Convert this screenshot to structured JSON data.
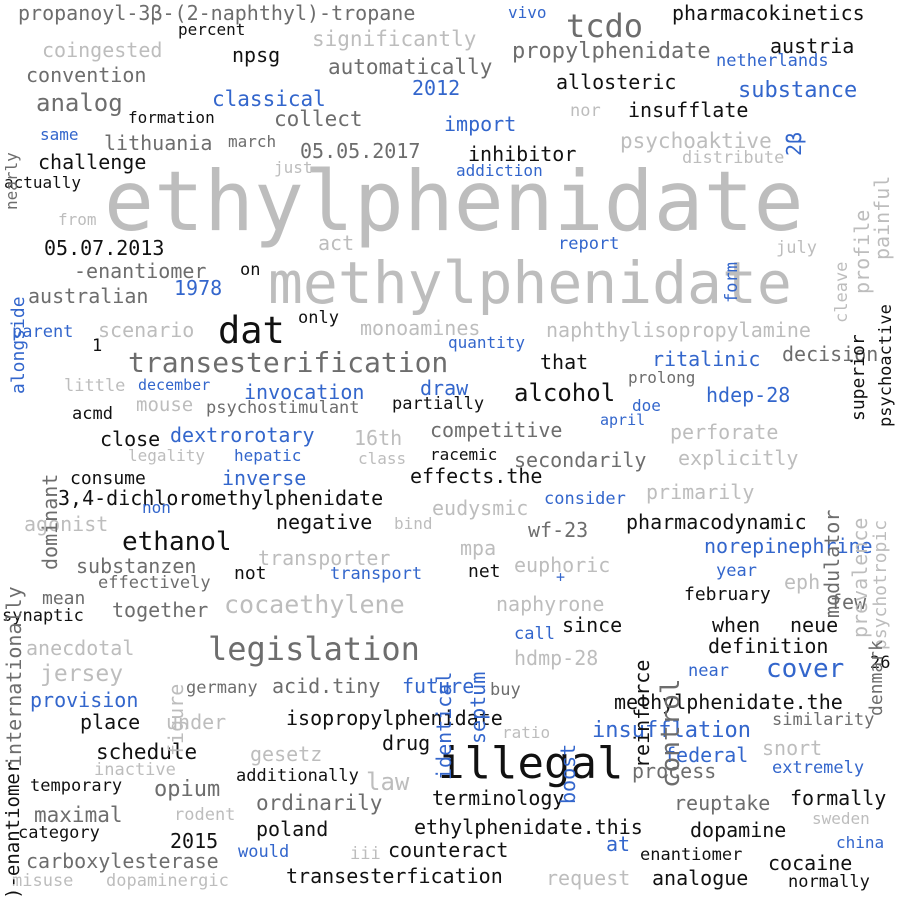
{
  "colors": {
    "background": "#ffffff",
    "light_gray": "#bdbdbd",
    "mid_gray": "#6d6d6d",
    "black": "#111111",
    "blue": "#3366cc"
  },
  "words": [
    {
      "text": "ethylphenidate",
      "color": "#bdbdbd"
    },
    {
      "text": "methylphenidate",
      "color": "#bdbdbd"
    },
    {
      "text": "illegal",
      "color": "#111111"
    },
    {
      "text": "transesterification",
      "color": "#6d6d6d"
    },
    {
      "text": "legislation",
      "color": "#6d6d6d"
    },
    {
      "text": "cocaethylene",
      "color": "#bdbdbd"
    },
    {
      "text": "dat",
      "color": "#111111"
    },
    {
      "text": "tcdo",
      "color": "#6d6d6d"
    },
    {
      "text": "ethanol",
      "color": "#111111"
    },
    {
      "text": "control",
      "color": "#6d6d6d"
    },
    {
      "text": "cover",
      "color": "#3366cc"
    },
    {
      "text": "analog",
      "color": "#6d6d6d"
    },
    {
      "text": "propanoyl-3β-(2-naphthyl)-tropane",
      "color": "#6d6d6d"
    },
    {
      "text": "pharmacokinetics",
      "color": "#111111"
    },
    {
      "text": "coingested",
      "color": "#bdbdbd"
    },
    {
      "text": "percent",
      "color": "#111111"
    },
    {
      "text": "significantly",
      "color": "#bdbdbd"
    },
    {
      "text": "vivo",
      "color": "#3366cc"
    },
    {
      "text": "propylphenidate",
      "color": "#6d6d6d"
    },
    {
      "text": "austria",
      "color": "#111111"
    },
    {
      "text": "netherlands",
      "color": "#3366cc"
    },
    {
      "text": "convention",
      "color": "#6d6d6d"
    },
    {
      "text": "npsg",
      "color": "#111111"
    },
    {
      "text": "automatically",
      "color": "#6d6d6d"
    },
    {
      "text": "allosteric",
      "color": "#111111"
    },
    {
      "text": "2012",
      "color": "#3366cc"
    },
    {
      "text": "substance",
      "color": "#3366cc"
    },
    {
      "text": "classical",
      "color": "#3366cc"
    },
    {
      "text": "formation",
      "color": "#111111"
    },
    {
      "text": "collect",
      "color": "#6d6d6d"
    },
    {
      "text": "nor",
      "color": "#bdbdbd"
    },
    {
      "text": "insufflate",
      "color": "#111111"
    },
    {
      "text": "import",
      "color": "#3366cc"
    },
    {
      "text": "same",
      "color": "#3366cc"
    },
    {
      "text": "lithuania",
      "color": "#6d6d6d"
    },
    {
      "text": "march",
      "color": "#6d6d6d"
    },
    {
      "text": "psychoaktive",
      "color": "#bdbdbd"
    },
    {
      "text": "05.05.2017",
      "color": "#6d6d6d"
    },
    {
      "text": "inhibitor",
      "color": "#111111"
    },
    {
      "text": "distribute",
      "color": "#bdbdbd"
    },
    {
      "text": "challenge",
      "color": "#111111"
    },
    {
      "text": "just",
      "color": "#bdbdbd"
    },
    {
      "text": "addiction",
      "color": "#3366cc"
    },
    {
      "text": "actually",
      "color": "#111111"
    },
    {
      "text": "from",
      "color": "#bdbdbd"
    },
    {
      "text": "05.07.2013",
      "color": "#111111"
    },
    {
      "text": "act",
      "color": "#bdbdbd"
    },
    {
      "text": "report",
      "color": "#3366cc"
    },
    {
      "text": "july",
      "color": "#bdbdbd"
    },
    {
      "text": "-enantiomer",
      "color": "#6d6d6d"
    },
    {
      "text": "on",
      "color": "#111111"
    },
    {
      "text": "1978",
      "color": "#3366cc"
    },
    {
      "text": "australian",
      "color": "#6d6d6d"
    },
    {
      "text": "parent",
      "color": "#3366cc"
    },
    {
      "text": "scenario",
      "color": "#bdbdbd"
    },
    {
      "text": "only",
      "color": "#111111"
    },
    {
      "text": "monoamines",
      "color": "#bdbdbd"
    },
    {
      "text": "naphthylisopropylamine",
      "color": "#bdbdbd"
    },
    {
      "text": "1",
      "color": "#111111"
    },
    {
      "text": "quantity",
      "color": "#3366cc"
    },
    {
      "text": "that",
      "color": "#111111"
    },
    {
      "text": "ritalinic",
      "color": "#3366cc"
    },
    {
      "text": "decision",
      "color": "#6d6d6d"
    },
    {
      "text": "little",
      "color": "#bdbdbd"
    },
    {
      "text": "december",
      "color": "#3366cc"
    },
    {
      "text": "invocation",
      "color": "#3366cc"
    },
    {
      "text": "draw",
      "color": "#3366cc"
    },
    {
      "text": "alcohol",
      "color": "#111111"
    },
    {
      "text": "prolong",
      "color": "#6d6d6d"
    },
    {
      "text": "hdep-28",
      "color": "#3366cc"
    },
    {
      "text": "mouse",
      "color": "#bdbdbd"
    },
    {
      "text": "psychostimulant",
      "color": "#6d6d6d"
    },
    {
      "text": "partially",
      "color": "#111111"
    },
    {
      "text": "doe",
      "color": "#3366cc"
    },
    {
      "text": "acmd",
      "color": "#111111"
    },
    {
      "text": "april",
      "color": "#3366cc"
    },
    {
      "text": "close",
      "color": "#111111"
    },
    {
      "text": "dextrorotary",
      "color": "#3366cc"
    },
    {
      "text": "16th",
      "color": "#bdbdbd"
    },
    {
      "text": "competitive",
      "color": "#6d6d6d"
    },
    {
      "text": "perforate",
      "color": "#bdbdbd"
    },
    {
      "text": "legality",
      "color": "#bdbdbd"
    },
    {
      "text": "hepatic",
      "color": "#3366cc"
    },
    {
      "text": "class",
      "color": "#bdbdbd"
    },
    {
      "text": "racemic",
      "color": "#111111"
    },
    {
      "text": "secondarily",
      "color": "#6d6d6d"
    },
    {
      "text": "explicitly",
      "color": "#bdbdbd"
    },
    {
      "text": "consume",
      "color": "#111111"
    },
    {
      "text": "inverse",
      "color": "#3366cc"
    },
    {
      "text": "effects.the",
      "color": "#111111"
    },
    {
      "text": "3,4-dichloromethylphenidate",
      "color": "#111111"
    },
    {
      "text": "eudysmic",
      "color": "#bdbdbd"
    },
    {
      "text": "consider",
      "color": "#3366cc"
    },
    {
      "text": "primarily",
      "color": "#bdbdbd"
    },
    {
      "text": "agonist",
      "color": "#bdbdbd"
    },
    {
      "text": "non",
      "color": "#3366cc"
    },
    {
      "text": "negative",
      "color": "#111111"
    },
    {
      "text": "bind",
      "color": "#bdbdbd"
    },
    {
      "text": "wf-23",
      "color": "#6d6d6d"
    },
    {
      "text": "pharmacodynamic",
      "color": "#111111"
    },
    {
      "text": "mpa",
      "color": "#bdbdbd"
    },
    {
      "text": "norepinephrine",
      "color": "#3366cc"
    },
    {
      "text": "transporter",
      "color": "#bdbdbd"
    },
    {
      "text": "substanzen",
      "color": "#6d6d6d"
    },
    {
      "text": "euphoric",
      "color": "#bdbdbd"
    },
    {
      "text": "+",
      "color": "#3366cc"
    },
    {
      "text": "year",
      "color": "#3366cc"
    },
    {
      "text": "effectively",
      "color": "#6d6d6d"
    },
    {
      "text": "not",
      "color": "#111111"
    },
    {
      "text": "transport",
      "color": "#3366cc"
    },
    {
      "text": "net",
      "color": "#111111"
    },
    {
      "text": "eph",
      "color": "#bdbdbd"
    },
    {
      "text": "mean",
      "color": "#6d6d6d"
    },
    {
      "text": "february",
      "color": "#111111"
    },
    {
      "text": "few",
      "color": "#6d6d6d"
    },
    {
      "text": "synaptic",
      "color": "#111111"
    },
    {
      "text": "together",
      "color": "#6d6d6d"
    },
    {
      "text": "naphyrone",
      "color": "#bdbdbd"
    },
    {
      "text": "when",
      "color": "#111111"
    },
    {
      "text": "neue",
      "color": "#111111"
    },
    {
      "text": "since",
      "color": "#111111"
    },
    {
      "text": "call",
      "color": "#3366cc"
    },
    {
      "text": "definition",
      "color": "#111111"
    },
    {
      "text": "anecdotal",
      "color": "#bdbdbd"
    },
    {
      "text": "hdmp-28",
      "color": "#bdbdbd"
    },
    {
      "text": "26",
      "color": "#111111"
    },
    {
      "text": "jersey",
      "color": "#bdbdbd"
    },
    {
      "text": "near",
      "color": "#3366cc"
    },
    {
      "text": "provision",
      "color": "#3366cc"
    },
    {
      "text": "germany",
      "color": "#6d6d6d"
    },
    {
      "text": "acid.tiny",
      "color": "#6d6d6d"
    },
    {
      "text": "future",
      "color": "#3366cc"
    },
    {
      "text": "buy",
      "color": "#6d6d6d"
    },
    {
      "text": "methylphenidate.the",
      "color": "#111111"
    },
    {
      "text": "place",
      "color": "#111111"
    },
    {
      "text": "under",
      "color": "#bdbdbd"
    },
    {
      "text": "isopropylphenidate",
      "color": "#111111"
    },
    {
      "text": "similarity",
      "color": "#6d6d6d"
    },
    {
      "text": "ratio",
      "color": "#bdbdbd"
    },
    {
      "text": "insufflation",
      "color": "#3366cc"
    },
    {
      "text": "drug",
      "color": "#111111"
    },
    {
      "text": "schedule",
      "color": "#111111"
    },
    {
      "text": "gesetz",
      "color": "#bdbdbd"
    },
    {
      "text": "federal",
      "color": "#3366cc"
    },
    {
      "text": "snort",
      "color": "#bdbdbd"
    },
    {
      "text": "inactive",
      "color": "#bdbdbd"
    },
    {
      "text": "process",
      "color": "#6d6d6d"
    },
    {
      "text": "extremely",
      "color": "#3366cc"
    },
    {
      "text": "additionally",
      "color": "#111111"
    },
    {
      "text": "law",
      "color": "#bdbdbd"
    },
    {
      "text": "temporary",
      "color": "#111111"
    },
    {
      "text": "opium",
      "color": "#6d6d6d"
    },
    {
      "text": "terminology",
      "color": "#111111"
    },
    {
      "text": "formally",
      "color": "#111111"
    },
    {
      "text": "reuptake",
      "color": "#6d6d6d"
    },
    {
      "text": "maximal",
      "color": "#6d6d6d"
    },
    {
      "text": "rodent",
      "color": "#bdbdbd"
    },
    {
      "text": "ordinarily",
      "color": "#6d6d6d"
    },
    {
      "text": "category",
      "color": "#111111"
    },
    {
      "text": "2015",
      "color": "#111111"
    },
    {
      "text": "poland",
      "color": "#111111"
    },
    {
      "text": "ethylphenidate.this",
      "color": "#111111"
    },
    {
      "text": "dopamine",
      "color": "#111111"
    },
    {
      "text": "sweden",
      "color": "#bdbdbd"
    },
    {
      "text": "carboxylesterase",
      "color": "#6d6d6d"
    },
    {
      "text": "would",
      "color": "#3366cc"
    },
    {
      "text": "iii",
      "color": "#bdbdbd"
    },
    {
      "text": "counteract",
      "color": "#111111"
    },
    {
      "text": "at",
      "color": "#3366cc"
    },
    {
      "text": "enantiomer",
      "color": "#111111"
    },
    {
      "text": "cocaine",
      "color": "#111111"
    },
    {
      "text": "china",
      "color": "#3366cc"
    },
    {
      "text": "misuse",
      "color": "#bdbdbd"
    },
    {
      "text": "dopaminergic",
      "color": "#bdbdbd"
    },
    {
      "text": "transesterfication",
      "color": "#111111"
    },
    {
      "text": "request",
      "color": "#bdbdbd"
    },
    {
      "text": "analogue",
      "color": "#111111"
    },
    {
      "text": "normally",
      "color": "#111111"
    },
    {
      "text": "nearly",
      "color": "#6d6d6d"
    },
    {
      "text": "alongside",
      "color": "#3366cc"
    },
    {
      "text": "internationally",
      "color": "#6d6d6d"
    },
    {
      "text": "dominant",
      "color": "#6d6d6d"
    },
    {
      "text": ")-enantiomer",
      "color": "#111111"
    },
    {
      "text": "figure",
      "color": "#bdbdbd"
    },
    {
      "text": "identical",
      "color": "#3366cc"
    },
    {
      "text": "septum",
      "color": "#3366cc"
    },
    {
      "text": "boost",
      "color": "#3366cc"
    },
    {
      "text": "reinforce",
      "color": "#111111"
    },
    {
      "text": "2β",
      "color": "#3366cc"
    },
    {
      "text": "form",
      "color": "#3366cc"
    },
    {
      "text": "cleave",
      "color": "#bdbdbd"
    },
    {
      "text": "superior",
      "color": "#111111"
    },
    {
      "text": "profile",
      "color": "#bdbdbd"
    },
    {
      "text": "painful",
      "color": "#bdbdbd"
    },
    {
      "text": "psychoactive",
      "color": "#111111"
    },
    {
      "text": "modulator",
      "color": "#6d6d6d"
    },
    {
      "text": "prevalence",
      "color": "#bdbdbd"
    },
    {
      "text": "psychotropic",
      "color": "#bdbdbd"
    },
    {
      "text": "denmark",
      "color": "#6d6d6d"
    }
  ]
}
